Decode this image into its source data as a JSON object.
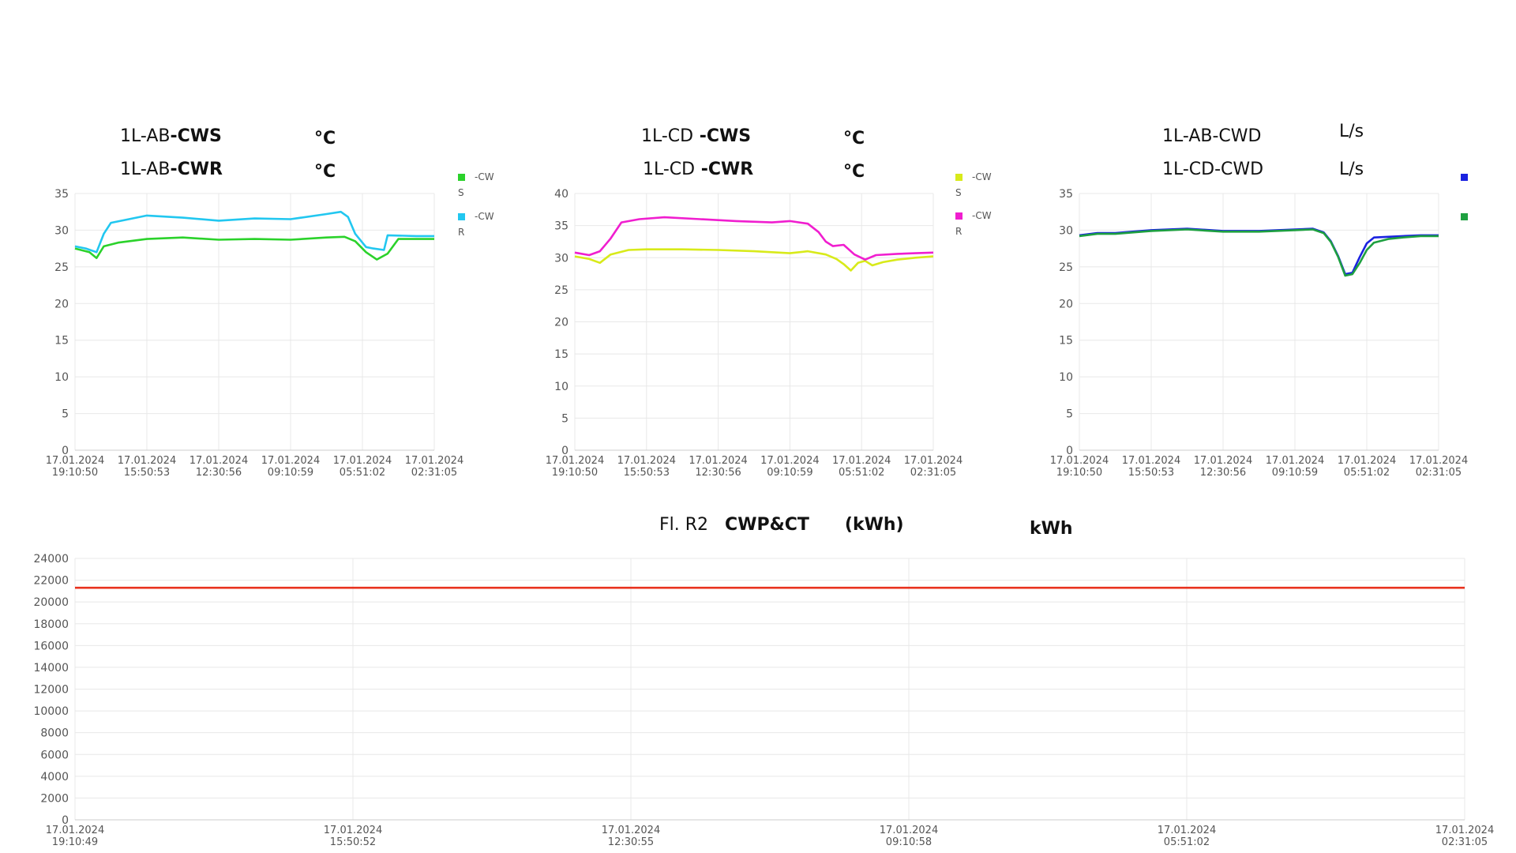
{
  "headers": {
    "chart1": {
      "line1": {
        "prefix": "1L-AB",
        "suffix": "-CWS",
        "unit": "°C"
      },
      "line2": {
        "prefix": "1L-AB",
        "suffix": "-CWR",
        "unit": "°C"
      },
      "legend": [
        {
          "label": "-CW",
          "sub": "S",
          "color": "#2bd22b"
        },
        {
          "label": "-CW",
          "sub": "R",
          "color": "#22c7f0"
        }
      ]
    },
    "chart2": {
      "line1": {
        "prefix": "1L-CD",
        "suffix": " -CWS",
        "unit": "°C"
      },
      "line2": {
        "prefix": "1L-CD",
        "suffix": " -CWR",
        "unit": "°C"
      },
      "legend": [
        {
          "label": "-CW",
          "sub": "S",
          "color": "#d8ea1a"
        },
        {
          "label": "-CW",
          "sub": "R",
          "color": "#f01ecf"
        }
      ]
    },
    "chart3": {
      "line1": {
        "text": "1L-AB-CWD",
        "unit": "L/s"
      },
      "line2": {
        "text": "1L-CD-CWD",
        "unit": "L/s"
      },
      "legend": [
        {
          "label": "",
          "sub": "",
          "color": "#1a22e0"
        },
        {
          "label": "",
          "sub": "",
          "color": "#1ea040"
        }
      ]
    },
    "chart4": {
      "part1": "Fl. R2",
      "part2": "CWP&CT",
      "part3": "(kWh)",
      "unit": "kWh"
    }
  },
  "chart_data": [
    {
      "type": "line",
      "x": [
        "17.01.2024 19:10:50",
        "17.01.2024 15:50:53",
        "17.01.2024 12:30:56",
        "17.01.2024 09:10:59",
        "17.01.2024 05:51:02",
        "17.01.2024 02:31:05"
      ],
      "ylim": [
        0,
        35
      ],
      "yticks": [
        0,
        5,
        10,
        15,
        20,
        25,
        30,
        35
      ],
      "grid": true,
      "series": [
        {
          "name": "-CWS",
          "color": "#2bd22b",
          "points": [
            [
              0,
              27.5
            ],
            [
              0.04,
              27
            ],
            [
              0.06,
              26.2
            ],
            [
              0.08,
              27.8
            ],
            [
              0.12,
              28.3
            ],
            [
              0.2,
              28.8
            ],
            [
              0.3,
              29
            ],
            [
              0.4,
              28.7
            ],
            [
              0.5,
              28.8
            ],
            [
              0.6,
              28.7
            ],
            [
              0.7,
              29
            ],
            [
              0.75,
              29.1
            ],
            [
              0.78,
              28.5
            ],
            [
              0.81,
              27
            ],
            [
              0.84,
              26
            ],
            [
              0.87,
              26.8
            ],
            [
              0.9,
              28.8
            ],
            [
              0.95,
              28.8
            ],
            [
              1.0,
              28.8
            ]
          ]
        },
        {
          "name": "-CWR",
          "color": "#22c7f0",
          "points": [
            [
              0,
              27.8
            ],
            [
              0.03,
              27.5
            ],
            [
              0.06,
              27
            ],
            [
              0.08,
              29.5
            ],
            [
              0.1,
              31
            ],
            [
              0.15,
              31.5
            ],
            [
              0.2,
              32
            ],
            [
              0.3,
              31.7
            ],
            [
              0.4,
              31.3
            ],
            [
              0.5,
              31.6
            ],
            [
              0.6,
              31.5
            ],
            [
              0.7,
              32.2
            ],
            [
              0.74,
              32.5
            ],
            [
              0.76,
              31.8
            ],
            [
              0.78,
              29.5
            ],
            [
              0.81,
              27.7
            ],
            [
              0.83,
              27.5
            ],
            [
              0.86,
              27.3
            ],
            [
              0.87,
              29.3
            ],
            [
              0.95,
              29.2
            ],
            [
              1.0,
              29.2
            ]
          ]
        }
      ]
    },
    {
      "type": "line",
      "x": [
        "17.01.2024 19:10:50",
        "17.01.2024 15:50:53",
        "17.01.2024 12:30:56",
        "17.01.2024 09:10:59",
        "17.01.2024 05:51:02",
        "17.01.2024 02:31:05"
      ],
      "ylim": [
        0,
        40
      ],
      "yticks": [
        0,
        5,
        10,
        15,
        20,
        25,
        30,
        35,
        40
      ],
      "grid": true,
      "series": [
        {
          "name": "-CWS",
          "color": "#d8ea1a",
          "points": [
            [
              0,
              30.2
            ],
            [
              0.04,
              29.8
            ],
            [
              0.07,
              29.2
            ],
            [
              0.1,
              30.5
            ],
            [
              0.15,
              31.2
            ],
            [
              0.2,
              31.3
            ],
            [
              0.3,
              31.3
            ],
            [
              0.4,
              31.2
            ],
            [
              0.5,
              31
            ],
            [
              0.6,
              30.7
            ],
            [
              0.65,
              31
            ],
            [
              0.7,
              30.5
            ],
            [
              0.73,
              29.8
            ],
            [
              0.75,
              29
            ],
            [
              0.77,
              28
            ],
            [
              0.79,
              29.2
            ],
            [
              0.81,
              29.5
            ],
            [
              0.83,
              28.8
            ],
            [
              0.86,
              29.3
            ],
            [
              0.9,
              29.7
            ],
            [
              0.95,
              30
            ],
            [
              1.0,
              30.2
            ]
          ]
        },
        {
          "name": "-CWR",
          "color": "#f01ecf",
          "points": [
            [
              0,
              30.8
            ],
            [
              0.04,
              30.4
            ],
            [
              0.07,
              31
            ],
            [
              0.1,
              33
            ],
            [
              0.13,
              35.5
            ],
            [
              0.18,
              36
            ],
            [
              0.25,
              36.3
            ],
            [
              0.35,
              36
            ],
            [
              0.45,
              35.7
            ],
            [
              0.55,
              35.5
            ],
            [
              0.6,
              35.7
            ],
            [
              0.65,
              35.3
            ],
            [
              0.68,
              34
            ],
            [
              0.7,
              32.5
            ],
            [
              0.72,
              31.8
            ],
            [
              0.75,
              32
            ],
            [
              0.78,
              30.5
            ],
            [
              0.81,
              29.7
            ],
            [
              0.84,
              30.4
            ],
            [
              0.9,
              30.6
            ],
            [
              0.95,
              30.7
            ],
            [
              1.0,
              30.8
            ]
          ]
        }
      ]
    },
    {
      "type": "line",
      "x": [
        "17.01.2024 19:10:50",
        "17.01.2024 15:50:53",
        "17.01.2024 12:30:56",
        "17.01.2024 09:10:59",
        "17.01.2024 05:51:02",
        "17.01.2024 02:31:05"
      ],
      "ylim": [
        0,
        35
      ],
      "yticks": [
        0,
        5,
        10,
        15,
        20,
        25,
        30,
        35
      ],
      "grid": true,
      "series": [
        {
          "name": "1L-AB-CWD",
          "color": "#1a22e0",
          "points": [
            [
              0,
              29.3
            ],
            [
              0.05,
              29.6
            ],
            [
              0.1,
              29.6
            ],
            [
              0.2,
              30
            ],
            [
              0.3,
              30.2
            ],
            [
              0.4,
              29.9
            ],
            [
              0.5,
              29.9
            ],
            [
              0.6,
              30.1
            ],
            [
              0.65,
              30.2
            ],
            [
              0.68,
              29.7
            ],
            [
              0.7,
              28.5
            ],
            [
              0.72,
              26.5
            ],
            [
              0.74,
              24
            ],
            [
              0.76,
              24.2
            ],
            [
              0.78,
              26.3
            ],
            [
              0.8,
              28.2
            ],
            [
              0.82,
              29
            ],
            [
              0.86,
              29.1
            ],
            [
              0.9,
              29.2
            ],
            [
              0.95,
              29.3
            ],
            [
              1.0,
              29.3
            ]
          ]
        },
        {
          "name": "1L-CD-CWD",
          "color": "#1ea040",
          "points": [
            [
              0,
              29.2
            ],
            [
              0.05,
              29.5
            ],
            [
              0.1,
              29.5
            ],
            [
              0.2,
              29.9
            ],
            [
              0.3,
              30.1
            ],
            [
              0.4,
              29.8
            ],
            [
              0.5,
              29.8
            ],
            [
              0.6,
              30
            ],
            [
              0.65,
              30.1
            ],
            [
              0.68,
              29.6
            ],
            [
              0.7,
              28.4
            ],
            [
              0.72,
              26.4
            ],
            [
              0.74,
              23.8
            ],
            [
              0.76,
              24
            ],
            [
              0.78,
              25.5
            ],
            [
              0.8,
              27.3
            ],
            [
              0.82,
              28.3
            ],
            [
              0.86,
              28.8
            ],
            [
              0.9,
              29
            ],
            [
              0.95,
              29.2
            ],
            [
              1.0,
              29.2
            ]
          ]
        }
      ]
    },
    {
      "type": "line",
      "x": [
        "17.01.2024 19:10:49",
        "17.01.2024 15:50:52",
        "17.01.2024 12:30:55",
        "17.01.2024 09:10:58",
        "17.01.2024 05:51:02",
        "17.01.2024 02:31:05"
      ],
      "ylim": [
        0,
        24000
      ],
      "yticks": [
        0,
        2000,
        4000,
        6000,
        8000,
        10000,
        12000,
        14000,
        16000,
        18000,
        20000,
        22000,
        24000
      ],
      "grid": true,
      "series": [
        {
          "name": "kWh",
          "color": "#e8321e",
          "points": [
            [
              0,
              21300
            ],
            [
              1.0,
              21300
            ]
          ]
        }
      ]
    }
  ]
}
